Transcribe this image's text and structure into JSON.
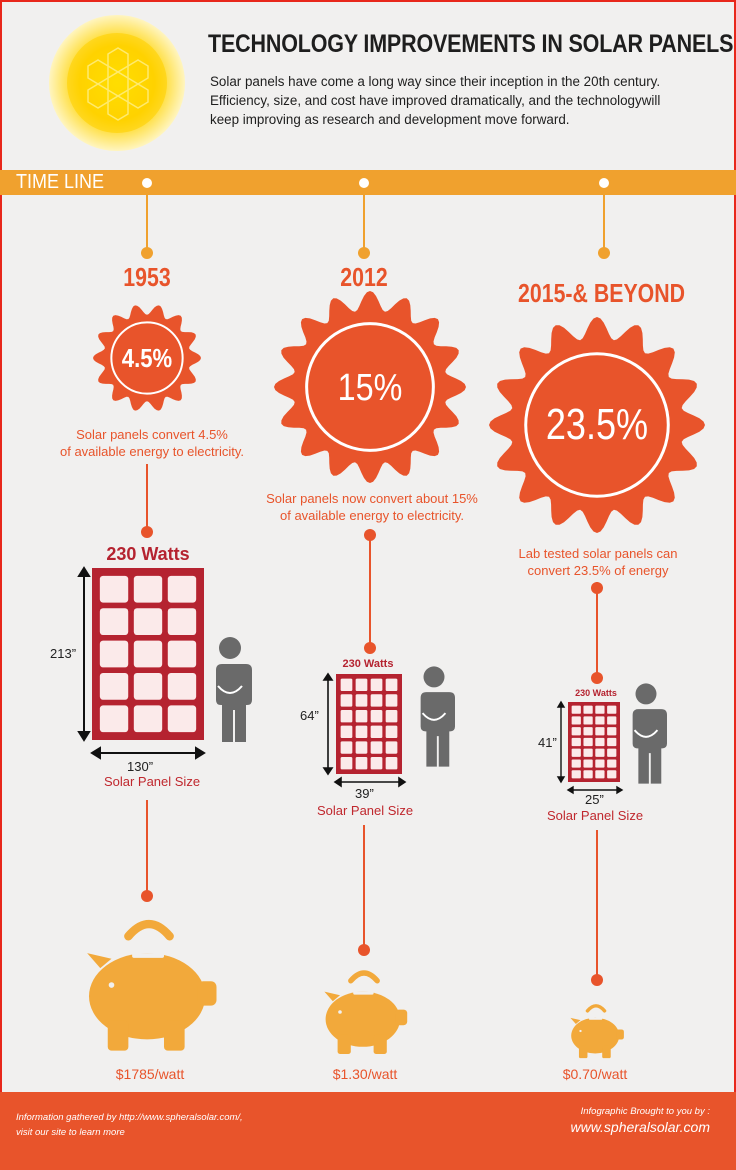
{
  "header": {
    "title": "TECHNOLOGY IMPROVEMENTS IN SOLAR PANELS",
    "intro_line1": "Solar panels have come a long way since their inception in the 20th century.",
    "intro_line2": "Efficiency, size, and cost have improved dramatically, and the technologywill",
    "intro_line3": "keep improving as research and development move forward."
  },
  "timeline": {
    "label": "TIME LINE",
    "eras": [
      {
        "year": "1953",
        "efficiency": "4.5%",
        "desc_line1": "Solar panels convert 4.5%",
        "desc_line2": "of available energy to electricity.",
        "watts": "230 Watts",
        "height": "213”",
        "width": "130”",
        "size_label": "Solar Panel Size",
        "price": "$1785/watt"
      },
      {
        "year": "2012",
        "efficiency": "15%",
        "desc_line1": "Solar panels now convert about 15%",
        "desc_line2": "of available energy to electricity.",
        "watts": "230 Watts",
        "height": "64”",
        "width": "39”",
        "size_label": "Solar Panel Size",
        "price": "$1.30/watt"
      },
      {
        "year": "2015-& BEYOND",
        "efficiency": "23.5%",
        "desc_line1": "Lab tested solar panels can",
        "desc_line2": "convert 23.5% of energy",
        "watts": "230 Watts",
        "height": "41”",
        "width": "25”",
        "size_label": "Solar Panel Size",
        "price": "$0.70/watt"
      }
    ]
  },
  "footer": {
    "source_line1": "Information gathered by http://www.spheralsolar.com/,",
    "source_line2": "visit our site to learn more",
    "brought_by": "Infographic Brought to you by :",
    "site": "www.spheralsolar.com"
  },
  "colors": {
    "accent_orange": "#e8542b",
    "timeline_yellow": "#f0a12e",
    "panel_red": "#b52330",
    "person_gray": "#6a6a6a",
    "piggy_yellow": "#f2a93b"
  },
  "icons": [
    "sun-icon",
    "badge-icon",
    "solar-panel-icon",
    "person-icon",
    "piggy-bank-icon"
  ]
}
